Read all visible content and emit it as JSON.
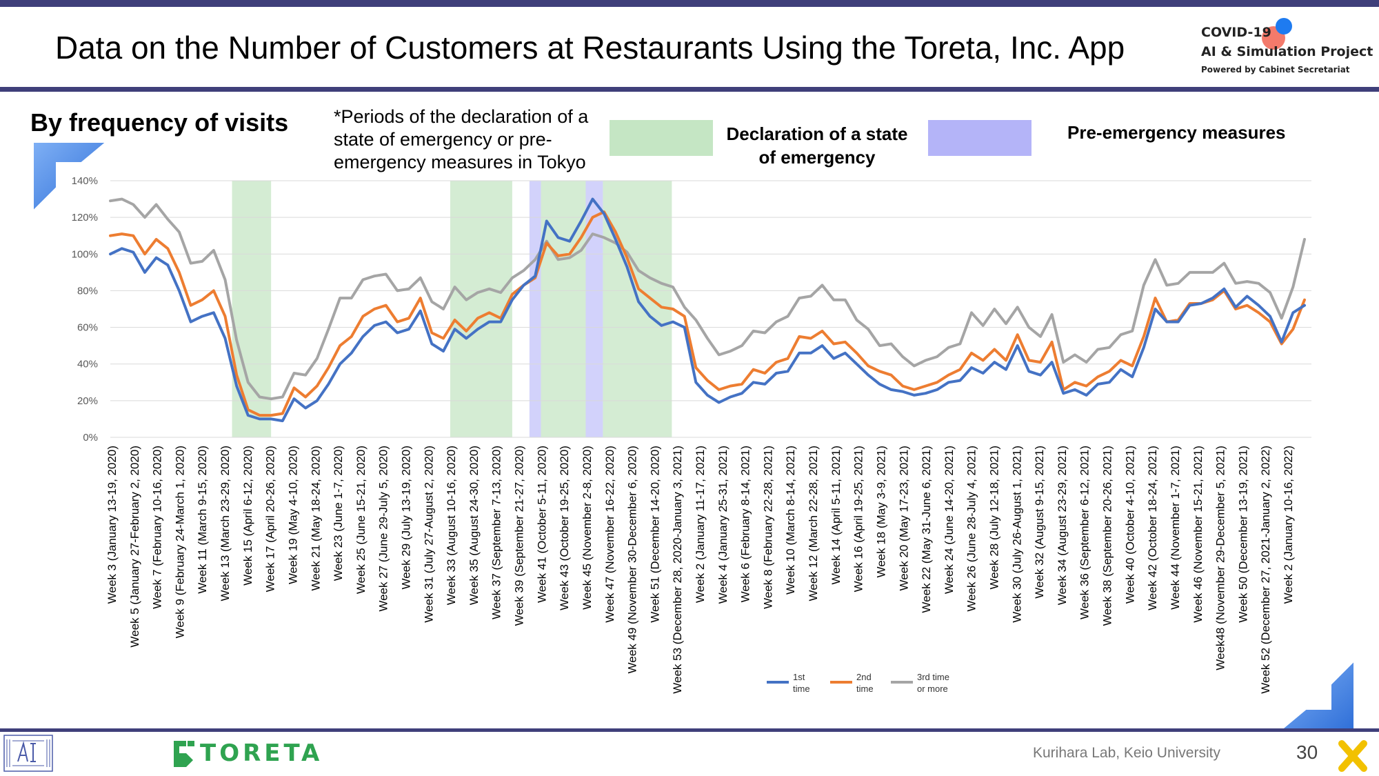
{
  "slide": {
    "title": "Data on the Number of Customers at Restaurants Using the Toreta, Inc. App",
    "subtitle": "By frequency of visits",
    "note": "*Periods of the declaration of a state of emergency or pre-emergency measures in Tokyo",
    "legend_emergency": "Declaration of a state of emergency",
    "legend_pre_emergency": "Pre-emergency measures",
    "footer": "Kurihara Lab, Keio University",
    "page": "30",
    "brand": "TORETA",
    "project": {
      "line1": "COVID-19",
      "line2": "AI & Simulation Project",
      "line3": "Powered by Cabinet Secretariat"
    }
  },
  "colors": {
    "first": "#4472c4",
    "second": "#ed7d31",
    "third": "#a5a5a5",
    "emergency": "#c5e6c4",
    "pre_emergency": "#b4b4f8",
    "theme": "#3f3f7a"
  },
  "chart_data": {
    "type": "line",
    "ylim": [
      0,
      140
    ],
    "y_ticks": [
      "0%",
      "20%",
      "40%",
      "60%",
      "80%",
      "100%",
      "120%",
      "140%"
    ],
    "x_labels": [
      "Week 3 (January 13-19, 2020)",
      "Week 5 (January 27-February 2, 2020)",
      "Week 7 (February 10-16, 2020)",
      "Week 9 (February 24-March 1, 2020)",
      "Week 11 (March 9-15, 2020)",
      "Week 13 (March 23-29, 2020)",
      "Week 15 (April 6-12, 2020)",
      "Week 17 (April 20-26, 2020)",
      "Week 19 (May 4-10, 2020)",
      "Week 21 (May 18-24, 2020)",
      "Week 23 (June 1-7, 2020)",
      "Week 25 (June 15-21, 2020)",
      "Week 27 (June 29-July 5, 2020)",
      "Week 29 (July 13-19, 2020)",
      "Week 31 (July 27-August 2, 2020)",
      "Week 33 (August 10-16, 2020)",
      "Week 35 (August 24-30, 2020)",
      "Week 37 (September 7-13, 2020)",
      "Week 39 (September 21-27, 2020)",
      "Week 41 (October 5-11, 2020)",
      "Week 43 (October 19-25, 2020)",
      "Week 45 (November 2-8, 2020)",
      "Week 47 (November 16-22, 2020)",
      "Week 49 (November 30-December 6, 2020)",
      "Week 51 (December 14-20, 2020)",
      "Week 53 (December 28, 2020-January 3, 2021)",
      "Week 2 (January 11-17, 2021)",
      "Week 4 (January 25-31, 2021)",
      "Week 6 (February 8-14, 2021)",
      "Week 8 (February 22-28, 2021)",
      "Week 10 (March 8-14, 2021)",
      "Week 12 (March 22-28, 2021)",
      "Week 14 (April 5-11, 2021)",
      "Week 16 (April 19-25, 2021)",
      "Week 18 (May 3-9, 2021)",
      "Week 20 (May 17-23, 2021)",
      "Week 22 (May 31-June 6, 2021)",
      "Week 24 (June 14-20, 2021)",
      "Week 26 (June 28-July 4, 2021)",
      "Week 28 (July 12-18, 2021)",
      "Week 30 (July 26-August 1, 2021)",
      "Week 32 (August 9-15, 2021)",
      "Week 34 (August 23-29, 2021)",
      "Week 36 (September 6-12, 2021)",
      "Week 38 (September 20-26, 2021)",
      "Week 40 (October 4-10, 2021)",
      "Week 42 (October 18-24, 2021)",
      "Week 44 (November 1-7, 2021)",
      "Week 46 (November 15-21, 2021)",
      "Week48 (November 29-December 5, 2021)",
      "Week 50 (December 13-19, 2021)",
      "Week 52 (December 27, 2021-January 2, 2022)",
      "Week 2 (January 10-16, 2022)"
    ],
    "series": [
      {
        "name": "1st time",
        "values": [
          100,
          103,
          101,
          90,
          98,
          94,
          80,
          63,
          66,
          68,
          54,
          28,
          12,
          10,
          10,
          9,
          21,
          16,
          20,
          29,
          40,
          46,
          55,
          61,
          63,
          57,
          59,
          69,
          51,
          47,
          59,
          54,
          59,
          63,
          63,
          75,
          83,
          88,
          118,
          109,
          107,
          118,
          130,
          122,
          108,
          93,
          74,
          66,
          61,
          63,
          60,
          30,
          23,
          19,
          22,
          24,
          30,
          29,
          35,
          36,
          46,
          46,
          50,
          43,
          46,
          40,
          34,
          29,
          26,
          25,
          23,
          24,
          26,
          30,
          31,
          38,
          35,
          41,
          37,
          50,
          36,
          34,
          41,
          24,
          26,
          23,
          29,
          30,
          37,
          33,
          49,
          70,
          63,
          63,
          72,
          73,
          76,
          81,
          71,
          77,
          72,
          66,
          52,
          68,
          72
        ]
      },
      {
        "name": "2nd time",
        "values": [
          110,
          111,
          110,
          100,
          108,
          103,
          90,
          72,
          75,
          80,
          66,
          34,
          15,
          12,
          12,
          13,
          27,
          22,
          28,
          38,
          50,
          55,
          66,
          70,
          72,
          63,
          65,
          76,
          57,
          54,
          64,
          58,
          65,
          68,
          65,
          78,
          83,
          87,
          106,
          99,
          100,
          109,
          120,
          123,
          112,
          98,
          81,
          76,
          71,
          70,
          66,
          38,
          31,
          26,
          28,
          29,
          37,
          35,
          41,
          43,
          55,
          54,
          58,
          51,
          52,
          46,
          39,
          36,
          34,
          28,
          26,
          28,
          30,
          34,
          37,
          46,
          42,
          48,
          42,
          56,
          42,
          41,
          52,
          26,
          30,
          28,
          33,
          36,
          42,
          39,
          55,
          76,
          63,
          64,
          73,
          73,
          75,
          80,
          70,
          72,
          68,
          63,
          51,
          59,
          75
        ]
      },
      {
        "name": "3rd time or more",
        "values": [
          129,
          130,
          127,
          120,
          127,
          119,
          112,
          95,
          96,
          102,
          86,
          53,
          30,
          22,
          21,
          22,
          35,
          34,
          43,
          59,
          76,
          76,
          86,
          88,
          89,
          80,
          81,
          87,
          74,
          70,
          82,
          75,
          79,
          81,
          79,
          87,
          91,
          97,
          107,
          97,
          98,
          102,
          111,
          109,
          106,
          101,
          91,
          87,
          84,
          82,
          71,
          64,
          54,
          45,
          47,
          50,
          58,
          57,
          63,
          66,
          76,
          77,
          83,
          75,
          75,
          64,
          59,
          50,
          51,
          44,
          39,
          42,
          44,
          49,
          51,
          68,
          61,
          70,
          62,
          71,
          60,
          55,
          67,
          41,
          45,
          41,
          48,
          49,
          56,
          58,
          83,
          97,
          83,
          84,
          90,
          90,
          90,
          95,
          84,
          85,
          84,
          79,
          65,
          82,
          108
        ]
      }
    ],
    "legend": [
      "1st time",
      "2nd time",
      "3rd time or more"
    ],
    "shaded_periods": [
      {
        "type": "emergency",
        "start": 10.6,
        "end": 14.0
      },
      {
        "type": "emergency",
        "start": 29.6,
        "end": 35.0
      },
      {
        "type": "pre_emergency",
        "start": 36.5,
        "end": 37.5
      },
      {
        "type": "emergency",
        "start": 37.5,
        "end": 41.4
      },
      {
        "type": "pre_emergency",
        "start": 41.4,
        "end": 42.9
      },
      {
        "type": "emergency",
        "start": 42.9,
        "end": 48.9
      }
    ],
    "legend_placement": "bottom",
    "grid": true
  }
}
